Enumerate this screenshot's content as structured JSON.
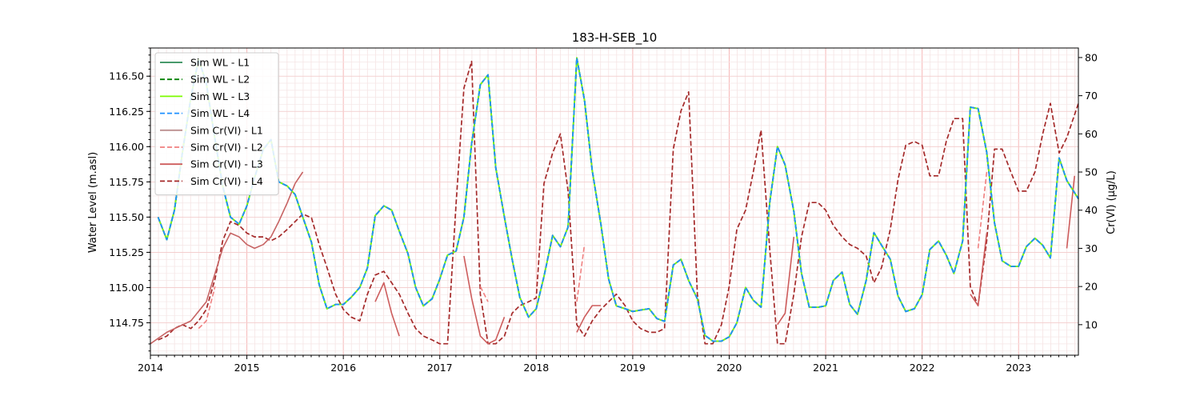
{
  "chart_data": {
    "type": "line",
    "title": "183-H-SEB_10",
    "ylabel": "Water Level (m.asl)",
    "y2label": "Cr(VI) (µg/L)",
    "xlim": [
      2014.0,
      2023.62
    ],
    "ylim": [
      114.52,
      116.7
    ],
    "y2lim": [
      2.0,
      82.5
    ],
    "x_ticks": [
      2014,
      2015,
      2016,
      2017,
      2018,
      2019,
      2020,
      2021,
      2022,
      2023
    ],
    "x_tick_labels": [
      "2014",
      "2015",
      "2016",
      "2017",
      "2018",
      "2019",
      "2020",
      "2021",
      "2022",
      "2023"
    ],
    "y_ticks": [
      114.75,
      115.0,
      115.25,
      115.5,
      115.75,
      116.0,
      116.25,
      116.5
    ],
    "y_tick_labels": [
      "114.75",
      "115.00",
      "115.25",
      "115.50",
      "115.75",
      "116.00",
      "116.25",
      "116.50"
    ],
    "y2_ticks": [
      10,
      20,
      30,
      40,
      50,
      60,
      70,
      80
    ],
    "y2_tick_labels": [
      "10",
      "20",
      "30",
      "40",
      "50",
      "60",
      "70",
      "80"
    ],
    "grid": true,
    "legend_position": "top-left",
    "wl_x": [
      2014.08,
      2014.17,
      2014.25,
      2014.33,
      2014.42,
      2014.5,
      2014.58,
      2014.67,
      2014.75,
      2014.83,
      2014.92,
      2015.0,
      2015.08,
      2015.17,
      2015.25,
      2015.33,
      2015.42,
      2015.5,
      2015.58,
      2015.67,
      2015.75,
      2015.83,
      2015.92,
      2016.0,
      2016.08,
      2016.17,
      2016.25,
      2016.33,
      2016.42,
      2016.5,
      2016.58,
      2016.67,
      2016.75,
      2016.83,
      2016.92,
      2017.0,
      2017.08,
      2017.17,
      2017.25,
      2017.33,
      2017.42,
      2017.5,
      2017.58,
      2017.67,
      2017.75,
      2017.83,
      2017.92,
      2018.0,
      2018.08,
      2018.17,
      2018.25,
      2018.33,
      2018.42,
      2018.5,
      2018.58,
      2018.67,
      2018.75,
      2018.83,
      2018.92,
      2019.0,
      2019.08,
      2019.17,
      2019.25,
      2019.33,
      2019.42,
      2019.5,
      2019.58,
      2019.67,
      2019.75,
      2019.83,
      2019.92,
      2020.0,
      2020.08,
      2020.17,
      2020.25,
      2020.33,
      2020.42,
      2020.5,
      2020.58,
      2020.67,
      2020.75,
      2020.83,
      2020.92,
      2021.0,
      2021.08,
      2021.17,
      2021.25,
      2021.33,
      2021.42,
      2021.5,
      2021.58,
      2021.67,
      2021.75,
      2021.83,
      2021.92,
      2022.0,
      2022.08,
      2022.17,
      2022.25,
      2022.33,
      2022.42,
      2022.5,
      2022.58,
      2022.67,
      2022.75,
      2022.83,
      2022.92,
      2023.0,
      2023.08,
      2023.17,
      2023.25,
      2023.33,
      2023.42,
      2023.5,
      2023.62
    ],
    "wl_y": [
      115.5,
      115.34,
      115.55,
      115.95,
      116.35,
      116.62,
      116.45,
      116.05,
      115.72,
      115.5,
      115.45,
      115.58,
      115.78,
      115.98,
      116.05,
      115.75,
      115.72,
      115.66,
      115.5,
      115.32,
      115.02,
      114.85,
      114.88,
      114.88,
      114.93,
      115.0,
      115.14,
      115.51,
      115.58,
      115.55,
      115.4,
      115.24,
      115.0,
      114.87,
      114.92,
      115.06,
      115.23,
      115.26,
      115.5,
      116.02,
      116.44,
      116.51,
      115.85,
      115.5,
      115.2,
      114.93,
      114.79,
      114.85,
      115.08,
      115.37,
      115.29,
      115.43,
      116.63,
      116.33,
      115.83,
      115.45,
      115.06,
      114.87,
      114.85,
      114.83,
      114.84,
      114.85,
      114.78,
      114.76,
      115.16,
      115.2,
      115.05,
      114.92,
      114.66,
      114.62,
      114.62,
      114.65,
      114.75,
      115.0,
      114.91,
      114.86,
      115.6,
      116.0,
      115.87,
      115.54,
      115.1,
      114.86,
      114.86,
      114.87,
      115.05,
      115.11,
      114.88,
      114.81,
      115.05,
      115.39,
      115.3,
      115.2,
      114.94,
      114.83,
      114.85,
      114.95,
      115.27,
      115.33,
      115.23,
      115.1,
      115.33,
      116.28,
      116.27,
      115.96,
      115.46,
      115.19,
      115.15,
      115.15,
      115.29,
      115.35,
      115.3,
      115.21,
      115.92,
      115.76,
      115.63
    ],
    "cr_l4_x": [
      2014.08,
      2014.17,
      2014.25,
      2014.33,
      2014.42,
      2014.5,
      2014.58,
      2014.67,
      2014.75,
      2014.83,
      2014.92,
      2015.0,
      2015.08,
      2015.17,
      2015.25,
      2015.33,
      2015.42,
      2015.5,
      2015.58,
      2015.67,
      2015.75,
      2015.83,
      2015.92,
      2016.0,
      2016.08,
      2016.17,
      2016.25,
      2016.33,
      2016.42,
      2016.5,
      2016.58,
      2016.67,
      2016.75,
      2016.83,
      2016.92,
      2017.0,
      2017.08,
      2017.17,
      2017.25,
      2017.33,
      2017.42,
      2017.5,
      2017.58,
      2017.67,
      2017.75,
      2017.83,
      2017.92,
      2018.0,
      2018.08,
      2018.17,
      2018.25,
      2018.33,
      2018.42,
      2018.5,
      2018.58,
      2018.67,
      2018.75,
      2018.83,
      2018.92,
      2019.0,
      2019.08,
      2019.17,
      2019.25,
      2019.33,
      2019.42,
      2019.5,
      2019.58,
      2019.67,
      2019.75,
      2019.83,
      2019.92,
      2020.0,
      2020.08,
      2020.17,
      2020.25,
      2020.33,
      2020.42,
      2020.5,
      2020.58,
      2020.67,
      2020.75,
      2020.83,
      2020.92,
      2021.0,
      2021.08,
      2021.17,
      2021.25,
      2021.33,
      2021.42,
      2021.5,
      2021.58,
      2021.67,
      2021.75,
      2021.83,
      2021.92,
      2022.0,
      2022.08,
      2022.17,
      2022.25,
      2022.33,
      2022.42,
      2022.5,
      2022.58,
      2022.67,
      2022.75,
      2022.83,
      2022.92,
      2023.0,
      2023.08,
      2023.17,
      2023.25,
      2023.33,
      2023.42,
      2023.5,
      2023.62
    ],
    "cr_l4_y": [
      6,
      7,
      9,
      10,
      9,
      11,
      14,
      22,
      32,
      37,
      36,
      34,
      33,
      33,
      32,
      33,
      35,
      37,
      39,
      38,
      31,
      25,
      18,
      14,
      12,
      11,
      18,
      23,
      24,
      21,
      18,
      13,
      9,
      7,
      6,
      5,
      5,
      42,
      72,
      79,
      18,
      5,
      5,
      7,
      13,
      15,
      16,
      17,
      47,
      55,
      60,
      45,
      10,
      7,
      11,
      14,
      16,
      18,
      15,
      11,
      9,
      8,
      8,
      9,
      56,
      66,
      71,
      18,
      5,
      5,
      10,
      20,
      35,
      40,
      50,
      61,
      30,
      5,
      5,
      18,
      33,
      42,
      42,
      40,
      36,
      33,
      31,
      30,
      28,
      21,
      25,
      35,
      48,
      57,
      58,
      57,
      49,
      49,
      58,
      64,
      64,
      20,
      15,
      32,
      56,
      56,
      50,
      45,
      45,
      50,
      60,
      68,
      55,
      59,
      68
    ],
    "cr_l1_x": [
      2014.0,
      2014.17,
      2014.42,
      2014.58,
      2014.75,
      2014.83,
      2014.92,
      2015.0,
      2015.08,
      2015.17,
      2015.25,
      2015.33,
      2015.42,
      2015.5,
      2015.58
    ],
    "cr_l1_y": [
      5,
      8,
      11,
      16,
      30,
      34,
      33,
      31,
      30,
      31,
      33,
      37,
      42,
      47,
      50
    ],
    "cr_l3_a_x": [
      2016.33,
      2016.42,
      2016.5,
      2016.58
    ],
    "cr_l3_a_y": [
      16,
      21,
      13,
      7
    ],
    "cr_l3_b_x": [
      2017.25,
      2017.33,
      2017.42,
      2017.5,
      2017.58,
      2017.67
    ],
    "cr_l3_b_y": [
      28,
      17,
      7,
      5,
      6,
      12
    ],
    "cr_l3_c_x": [
      2018.42,
      2018.5,
      2018.58,
      2018.67
    ],
    "cr_l3_c_y": [
      8,
      12,
      15,
      15
    ],
    "cr_l3_d_x": [
      2020.5,
      2020.58,
      2020.67
    ],
    "cr_l3_d_y": [
      10,
      13,
      33
    ],
    "cr_l3_e_x": [
      2022.5,
      2022.58,
      2022.67
    ],
    "cr_l3_e_y": [
      18,
      15,
      34
    ],
    "cr_l3_f_x": [
      2023.5,
      2023.58
    ],
    "cr_l3_f_y": [
      30,
      49
    ],
    "cr_l2_a_x": [
      2014.5,
      2014.58,
      2014.67
    ],
    "cr_l2_a_y": [
      9,
      11,
      20
    ],
    "cr_l2_b_x": [
      2017.42,
      2017.5
    ],
    "cr_l2_b_y": [
      20,
      16
    ],
    "cr_l2_c_x": [
      2018.42,
      2018.5
    ],
    "cr_l2_c_y": [
      16,
      31
    ],
    "cr_l2_d_x": [
      2022.58,
      2022.67
    ],
    "cr_l2_d_y": [
      30,
      50
    ],
    "legend": [
      {
        "label": "Sim WL - L1",
        "color": "#2e8b57",
        "dash": "solid"
      },
      {
        "label": "Sim WL - L2",
        "color": "#008000",
        "dash": "dashed"
      },
      {
        "label": "Sim WL - L3",
        "color": "#7cfc00",
        "dash": "solid"
      },
      {
        "label": "Sim WL - L4",
        "color": "#1e90ff",
        "dash": "dashed"
      },
      {
        "label": "Sim Cr(VI) - L1",
        "color": "#bc8f8f",
        "dash": "solid"
      },
      {
        "label": "Sim Cr(VI) - L2",
        "color": "#f08080",
        "dash": "dashed"
      },
      {
        "label": "Sim Cr(VI) - L3",
        "color": "#cd5c5c",
        "dash": "solid"
      },
      {
        "label": "Sim Cr(VI) - L4",
        "color": "#a52a2a",
        "dash": "dashed"
      }
    ]
  }
}
